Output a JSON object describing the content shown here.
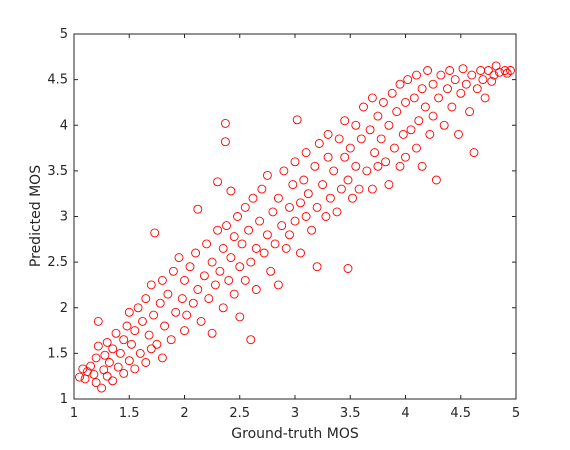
{
  "chart_data": {
    "type": "scatter",
    "title": "",
    "xlabel": "Ground-truth MOS",
    "ylabel": "Predicted MOS",
    "xlim": [
      1,
      5
    ],
    "ylim": [
      1,
      5
    ],
    "xticks": [
      "1",
      "1.5",
      "2",
      "2.5",
      "3",
      "3.5",
      "4",
      "4.5",
      "5"
    ],
    "yticks": [
      "1",
      "1.5",
      "2",
      "2.5",
      "3",
      "3.5",
      "4",
      "4.5",
      "5"
    ],
    "grid": false,
    "marker": "open circle",
    "color": "#ff0000",
    "series": [
      {
        "points": [
          [
            1.05,
            1.24
          ],
          [
            1.08,
            1.33
          ],
          [
            1.1,
            1.22
          ],
          [
            1.12,
            1.3
          ],
          [
            1.15,
            1.36
          ],
          [
            1.18,
            1.27
          ],
          [
            1.2,
            1.18
          ],
          [
            1.2,
            1.45
          ],
          [
            1.22,
            1.58
          ],
          [
            1.22,
            1.85
          ],
          [
            1.25,
            1.12
          ],
          [
            1.27,
            1.32
          ],
          [
            1.28,
            1.48
          ],
          [
            1.3,
            1.25
          ],
          [
            1.3,
            1.62
          ],
          [
            1.32,
            1.4
          ],
          [
            1.35,
            1.2
          ],
          [
            1.35,
            1.55
          ],
          [
            1.38,
            1.72
          ],
          [
            1.4,
            1.35
          ],
          [
            1.42,
            1.5
          ],
          [
            1.45,
            1.28
          ],
          [
            1.45,
            1.65
          ],
          [
            1.48,
            1.8
          ],
          [
            1.5,
            1.42
          ],
          [
            1.5,
            1.95
          ],
          [
            1.52,
            1.6
          ],
          [
            1.55,
            1.33
          ],
          [
            1.55,
            1.75
          ],
          [
            1.58,
            2.0
          ],
          [
            1.6,
            1.5
          ],
          [
            1.62,
            1.85
          ],
          [
            1.65,
            1.4
          ],
          [
            1.65,
            2.1
          ],
          [
            1.68,
            1.7
          ],
          [
            1.7,
            1.55
          ],
          [
            1.7,
            2.25
          ],
          [
            1.72,
            1.92
          ],
          [
            1.73,
            2.82
          ],
          [
            1.75,
            1.6
          ],
          [
            1.78,
            2.05
          ],
          [
            1.8,
            1.45
          ],
          [
            1.8,
            2.3
          ],
          [
            1.82,
            1.8
          ],
          [
            1.85,
            2.15
          ],
          [
            1.88,
            1.65
          ],
          [
            1.9,
            2.4
          ],
          [
            1.92,
            1.95
          ],
          [
            1.95,
            2.55
          ],
          [
            1.98,
            2.1
          ],
          [
            2.0,
            1.75
          ],
          [
            2.0,
            2.3
          ],
          [
            2.02,
            1.92
          ],
          [
            2.05,
            2.45
          ],
          [
            2.08,
            2.05
          ],
          [
            2.1,
            2.6
          ],
          [
            2.12,
            2.2
          ],
          [
            2.12,
            3.08
          ],
          [
            2.15,
            1.85
          ],
          [
            2.18,
            2.35
          ],
          [
            2.2,
            2.7
          ],
          [
            2.22,
            2.1
          ],
          [
            2.25,
            2.5
          ],
          [
            2.25,
            1.72
          ],
          [
            2.28,
            2.25
          ],
          [
            2.3,
            2.85
          ],
          [
            2.3,
            3.38
          ],
          [
            2.32,
            2.4
          ],
          [
            2.35,
            2.0
          ],
          [
            2.35,
            2.65
          ],
          [
            2.37,
            4.02
          ],
          [
            2.37,
            3.82
          ],
          [
            2.38,
            2.9
          ],
          [
            2.4,
            2.3
          ],
          [
            2.42,
            2.55
          ],
          [
            2.42,
            3.28
          ],
          [
            2.45,
            2.15
          ],
          [
            2.45,
            2.78
          ],
          [
            2.48,
            3.0
          ],
          [
            2.5,
            2.45
          ],
          [
            2.5,
            1.9
          ],
          [
            2.52,
            2.7
          ],
          [
            2.55,
            2.3
          ],
          [
            2.55,
            3.1
          ],
          [
            2.58,
            2.85
          ],
          [
            2.6,
            2.5
          ],
          [
            2.6,
            1.65
          ],
          [
            2.62,
            3.2
          ],
          [
            2.65,
            2.65
          ],
          [
            2.65,
            2.2
          ],
          [
            2.68,
            2.95
          ],
          [
            2.7,
            3.3
          ],
          [
            2.72,
            2.6
          ],
          [
            2.75,
            2.8
          ],
          [
            2.75,
            3.45
          ],
          [
            2.78,
            2.4
          ],
          [
            2.8,
            3.05
          ],
          [
            2.82,
            2.7
          ],
          [
            2.85,
            3.2
          ],
          [
            2.85,
            2.25
          ],
          [
            2.88,
            2.9
          ],
          [
            2.9,
            3.5
          ],
          [
            2.92,
            2.65
          ],
          [
            2.95,
            3.1
          ],
          [
            2.95,
            2.8
          ],
          [
            2.98,
            3.35
          ],
          [
            3.0,
            2.95
          ],
          [
            3.0,
            3.6
          ],
          [
            3.02,
            4.06
          ],
          [
            3.05,
            3.15
          ],
          [
            3.05,
            2.6
          ],
          [
            3.08,
            3.4
          ],
          [
            3.1,
            3.0
          ],
          [
            3.1,
            3.7
          ],
          [
            3.12,
            3.25
          ],
          [
            3.15,
            2.85
          ],
          [
            3.18,
            3.55
          ],
          [
            3.2,
            3.1
          ],
          [
            3.2,
            2.45
          ],
          [
            3.22,
            3.8
          ],
          [
            3.25,
            3.35
          ],
          [
            3.28,
            3.0
          ],
          [
            3.3,
            3.65
          ],
          [
            3.3,
            3.9
          ],
          [
            3.32,
            3.2
          ],
          [
            3.35,
            3.5
          ],
          [
            3.38,
            3.05
          ],
          [
            3.4,
            3.85
          ],
          [
            3.42,
            3.3
          ],
          [
            3.45,
            3.65
          ],
          [
            3.45,
            4.05
          ],
          [
            3.48,
            3.4
          ],
          [
            3.48,
            2.43
          ],
          [
            3.5,
            3.75
          ],
          [
            3.52,
            3.2
          ],
          [
            3.55,
            4.0
          ],
          [
            3.55,
            3.55
          ],
          [
            3.58,
            3.3
          ],
          [
            3.6,
            3.85
          ],
          [
            3.62,
            4.2
          ],
          [
            3.65,
            3.5
          ],
          [
            3.68,
            3.95
          ],
          [
            3.7,
            3.3
          ],
          [
            3.7,
            4.3
          ],
          [
            3.72,
            3.7
          ],
          [
            3.75,
            4.1
          ],
          [
            3.75,
            3.55
          ],
          [
            3.78,
            3.85
          ],
          [
            3.8,
            4.25
          ],
          [
            3.82,
            3.6
          ],
          [
            3.85,
            4.0
          ],
          [
            3.85,
            3.35
          ],
          [
            3.88,
            4.35
          ],
          [
            3.9,
            3.75
          ],
          [
            3.92,
            4.15
          ],
          [
            3.95,
            3.55
          ],
          [
            3.95,
            4.45
          ],
          [
            3.98,
            3.9
          ],
          [
            4.0,
            4.25
          ],
          [
            4.0,
            3.65
          ],
          [
            4.02,
            4.5
          ],
          [
            4.05,
            3.95
          ],
          [
            4.08,
            4.3
          ],
          [
            4.1,
            3.75
          ],
          [
            4.1,
            4.55
          ],
          [
            4.12,
            4.05
          ],
          [
            4.15,
            4.4
          ],
          [
            4.15,
            3.55
          ],
          [
            4.18,
            4.2
          ],
          [
            4.2,
            4.6
          ],
          [
            4.22,
            3.9
          ],
          [
            4.25,
            4.45
          ],
          [
            4.25,
            4.1
          ],
          [
            4.28,
            3.4
          ],
          [
            4.3,
            4.3
          ],
          [
            4.32,
            4.55
          ],
          [
            4.35,
            4.0
          ],
          [
            4.38,
            4.4
          ],
          [
            4.4,
            4.6
          ],
          [
            4.42,
            4.2
          ],
          [
            4.45,
            4.5
          ],
          [
            4.48,
            3.9
          ],
          [
            4.5,
            4.35
          ],
          [
            4.52,
            4.62
          ],
          [
            4.55,
            4.45
          ],
          [
            4.58,
            4.15
          ],
          [
            4.6,
            4.55
          ],
          [
            4.62,
            3.7
          ],
          [
            4.65,
            4.4
          ],
          [
            4.68,
            4.6
          ],
          [
            4.7,
            4.5
          ],
          [
            4.72,
            4.3
          ],
          [
            4.75,
            4.6
          ],
          [
            4.78,
            4.48
          ],
          [
            4.8,
            4.55
          ],
          [
            4.82,
            4.65
          ],
          [
            4.85,
            4.58
          ],
          [
            4.9,
            4.6
          ],
          [
            4.92,
            4.57
          ],
          [
            4.95,
            4.6
          ]
        ]
      }
    ]
  }
}
